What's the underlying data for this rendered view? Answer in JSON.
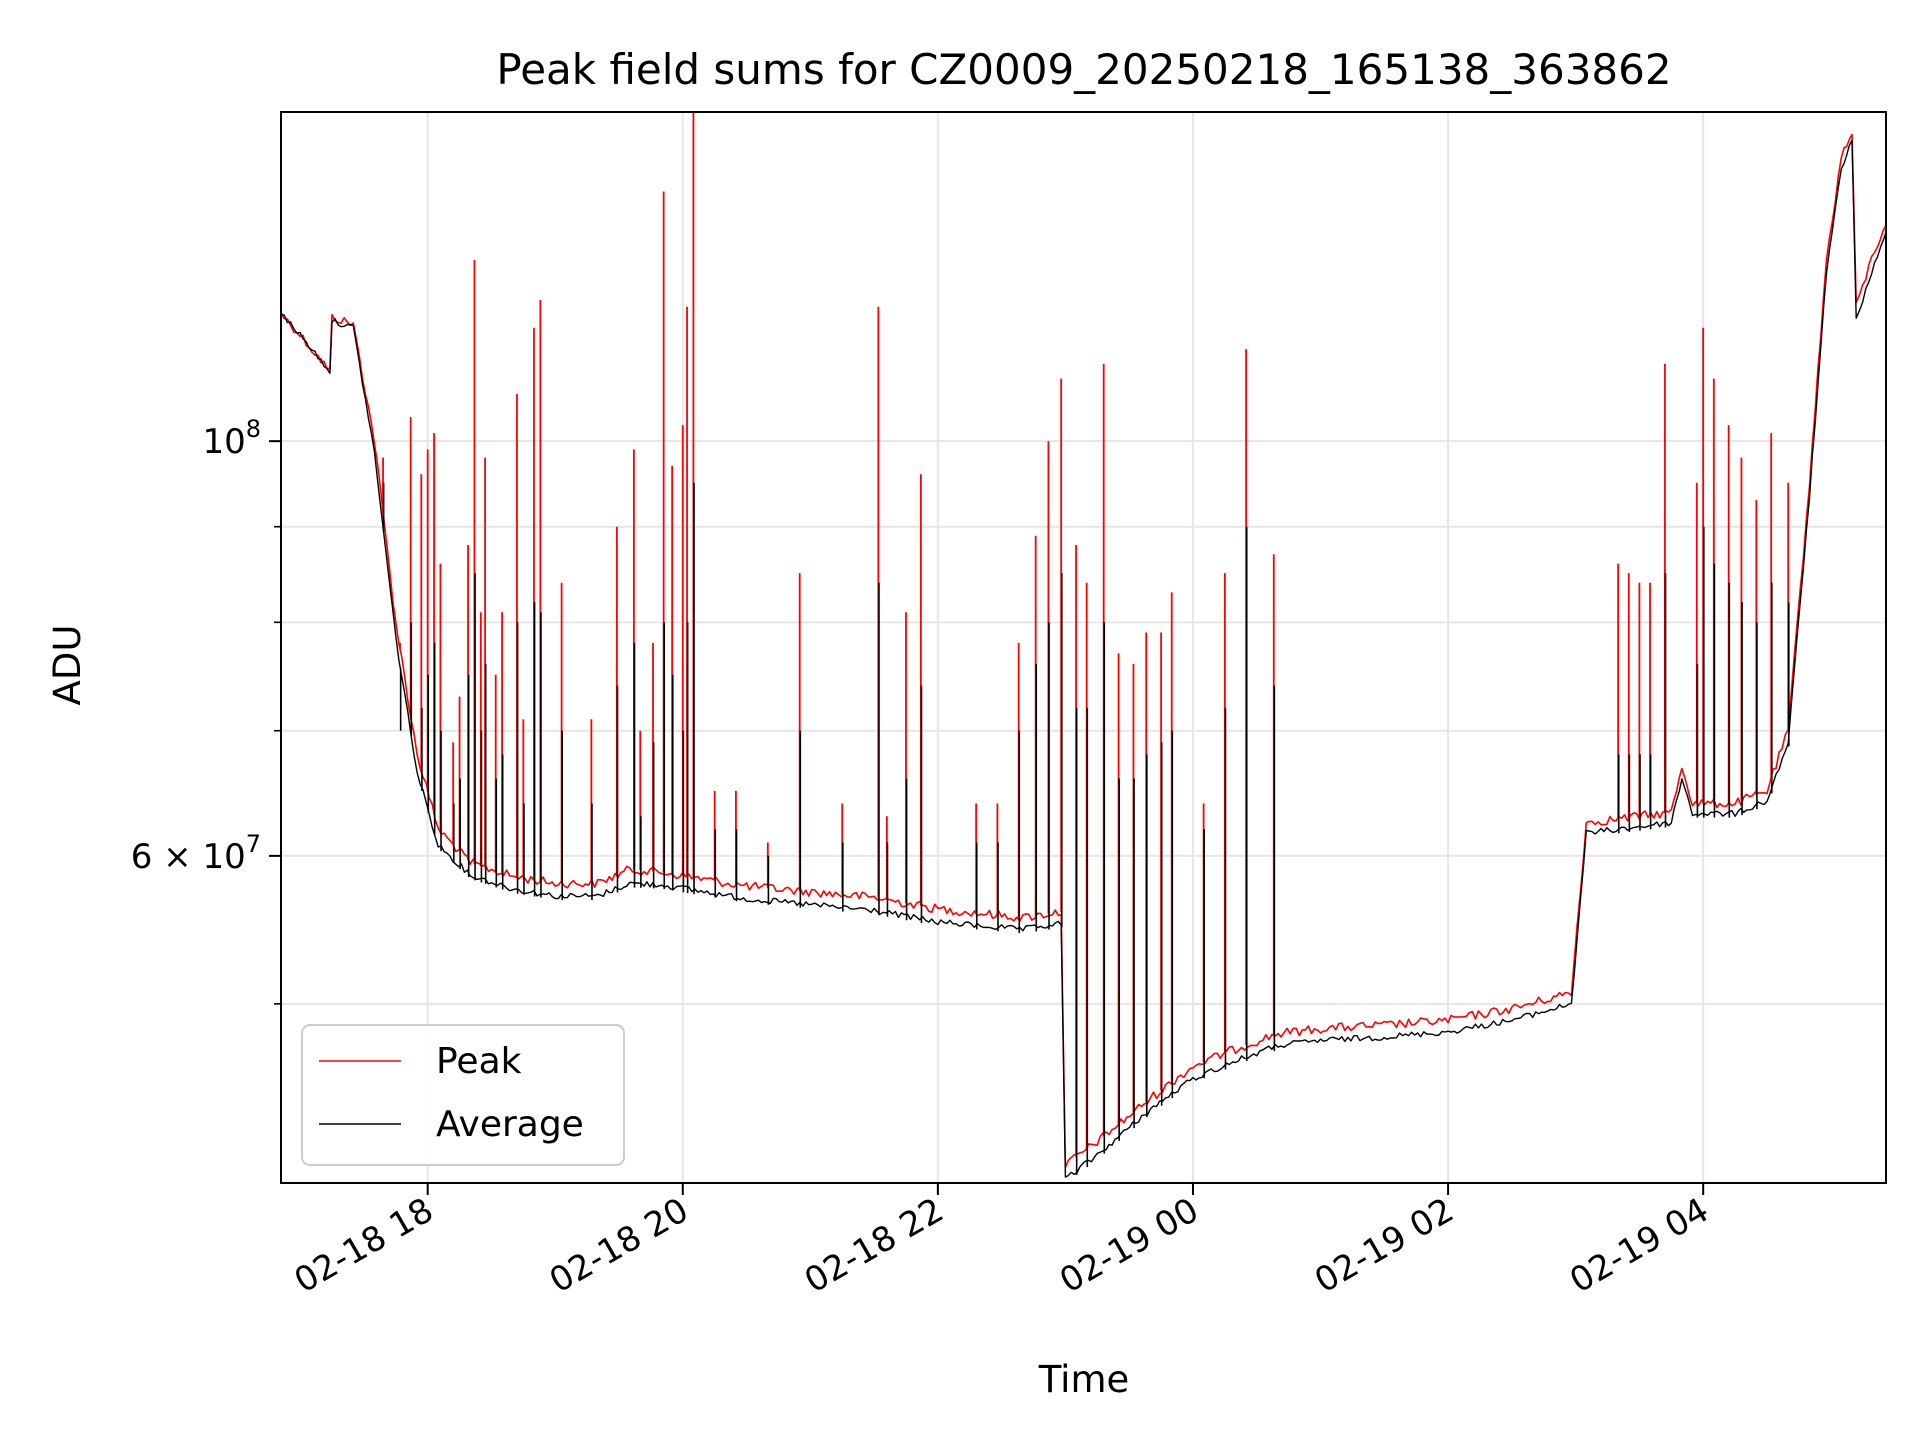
{
  "chart_data": {
    "type": "line",
    "title": "Peak field sums for CZ0009_20250218_165138_363862",
    "xlabel": "Time",
    "ylabel": "ADU",
    "yscale": "log",
    "xlim": [
      "2025-02-18 16:51",
      "2025-02-19 05:26"
    ],
    "ylim": [
      40100000,
      150000000
    ],
    "grid": true,
    "legend_position": "lower-left",
    "x_ticks": [
      {
        "value": "2025-02-18 18:00",
        "label": "02-18 18"
      },
      {
        "value": "2025-02-18 20:00",
        "label": "02-18 20"
      },
      {
        "value": "2025-02-18 22:00",
        "label": "02-18 22"
      },
      {
        "value": "2025-02-19 00:00",
        "label": "02-19 00"
      },
      {
        "value": "2025-02-19 02:00",
        "label": "02-19 02"
      },
      {
        "value": "2025-02-19 04:00",
        "label": "02-19 04"
      }
    ],
    "y_ticks": [
      {
        "value": 100000000,
        "base": "10",
        "exp": "8",
        "mult": ""
      },
      {
        "value": 60000000,
        "base": "10",
        "exp": "7",
        "mult": "6 × "
      }
    ],
    "y_minor_ticks": [
      50000000,
      70000000,
      80000000,
      90000000
    ],
    "series": [
      {
        "name": "Peak",
        "color": "#ff0000",
        "baseline": [
          [
            "2025-02-18 16:51",
            117000000
          ],
          [
            "2025-02-18 17:00",
            114000000
          ],
          [
            "2025-02-18 17:14",
            109000000
          ],
          [
            "2025-02-18 17:15",
            116500000
          ],
          [
            "2025-02-18 17:25",
            115500000
          ],
          [
            "2025-02-18 17:35",
            100000000
          ],
          [
            "2025-02-18 17:45",
            80000000
          ],
          [
            "2025-02-18 17:55",
            68000000
          ],
          [
            "2025-02-18 18:05",
            62000000
          ],
          [
            "2025-02-18 18:20",
            59500000
          ],
          [
            "2025-02-18 18:40",
            58500000
          ],
          [
            "2025-02-18 19:00",
            58000000
          ],
          [
            "2025-02-18 19:20",
            58000000
          ],
          [
            "2025-02-18 19:35",
            59000000
          ],
          [
            "2025-02-18 19:50",
            58800000
          ],
          [
            "2025-02-18 20:30",
            57800000
          ],
          [
            "2025-02-18 21:30",
            57000000
          ],
          [
            "2025-02-18 22:00",
            56200000
          ],
          [
            "2025-02-18 22:40",
            55600000
          ],
          [
            "2025-02-18 22:58",
            56000000
          ],
          [
            "2025-02-18 23:00",
            41000000
          ],
          [
            "2025-02-18 23:15",
            42200000
          ],
          [
            "2025-02-18 23:40",
            44500000
          ],
          [
            "2025-02-19 00:00",
            46300000
          ],
          [
            "2025-02-19 00:20",
            47300000
          ],
          [
            "2025-02-19 00:40",
            48200000
          ],
          [
            "2025-02-19 01:00",
            48500000
          ],
          [
            "2025-02-19 01:30",
            48700000
          ],
          [
            "2025-02-19 02:00",
            49000000
          ],
          [
            "2025-02-19 02:30",
            49700000
          ],
          [
            "2025-02-19 02:58",
            50700000
          ],
          [
            "2025-02-19 03:05",
            62500000
          ],
          [
            "2025-02-19 03:30",
            63000000
          ],
          [
            "2025-02-19 03:45",
            63300000
          ],
          [
            "2025-02-19 03:50",
            67000000
          ],
          [
            "2025-02-19 03:55",
            64000000
          ],
          [
            "2025-02-19 04:15",
            64000000
          ],
          [
            "2025-02-19 04:30",
            65000000
          ],
          [
            "2025-02-19 04:40",
            70000000
          ],
          [
            "2025-02-19 04:50",
            95000000
          ],
          [
            "2025-02-19 04:58",
            125000000
          ],
          [
            "2025-02-19 05:05",
            142000000
          ],
          [
            "2025-02-19 05:10",
            146000000
          ],
          [
            "2025-02-19 05:12",
            118000000
          ],
          [
            "2025-02-19 05:18",
            124000000
          ],
          [
            "2025-02-19 05:26",
            131000000
          ]
        ]
      },
      {
        "name": "Average",
        "color": "#000000",
        "baseline": [
          [
            "2025-02-18 16:51",
            117000000
          ],
          [
            "2025-02-18 17:00",
            114000000
          ],
          [
            "2025-02-18 17:14",
            109000000
          ],
          [
            "2025-02-18 17:15",
            116000000
          ],
          [
            "2025-02-18 17:25",
            115000000
          ],
          [
            "2025-02-18 17:35",
            98500000
          ],
          [
            "2025-02-18 17:45",
            78500000
          ],
          [
            "2025-02-18 17:55",
            66500000
          ],
          [
            "2025-02-18 18:05",
            60800000
          ],
          [
            "2025-02-18 18:20",
            58600000
          ],
          [
            "2025-02-18 18:40",
            57600000
          ],
          [
            "2025-02-18 19:00",
            57100000
          ],
          [
            "2025-02-18 19:20",
            57100000
          ],
          [
            "2025-02-18 19:35",
            58000000
          ],
          [
            "2025-02-18 19:50",
            57900000
          ],
          [
            "2025-02-18 20:30",
            56900000
          ],
          [
            "2025-02-18 21:30",
            56100000
          ],
          [
            "2025-02-18 22:00",
            55300000
          ],
          [
            "2025-02-18 22:40",
            54800000
          ],
          [
            "2025-02-18 22:58",
            55200000
          ],
          [
            "2025-02-18 23:00",
            40300000
          ],
          [
            "2025-02-18 23:15",
            41500000
          ],
          [
            "2025-02-18 23:40",
            43900000
          ],
          [
            "2025-02-19 00:00",
            45600000
          ],
          [
            "2025-02-19 00:20",
            46600000
          ],
          [
            "2025-02-19 00:40",
            47500000
          ],
          [
            "2025-02-19 01:00",
            47800000
          ],
          [
            "2025-02-19 01:30",
            48000000
          ],
          [
            "2025-02-19 02:00",
            48300000
          ],
          [
            "2025-02-19 02:30",
            49000000
          ],
          [
            "2025-02-19 02:58",
            50000000
          ],
          [
            "2025-02-19 03:05",
            61700000
          ],
          [
            "2025-02-19 03:30",
            62200000
          ],
          [
            "2025-02-19 03:45",
            62500000
          ],
          [
            "2025-02-19 03:50",
            66000000
          ],
          [
            "2025-02-19 03:55",
            63200000
          ],
          [
            "2025-02-19 04:15",
            63200000
          ],
          [
            "2025-02-19 04:30",
            64200000
          ],
          [
            "2025-02-19 04:40",
            69000000
          ],
          [
            "2025-02-19 04:50",
            93500000
          ],
          [
            "2025-02-19 04:58",
            123000000
          ],
          [
            "2025-02-19 05:05",
            140000000
          ],
          [
            "2025-02-19 05:10",
            145000000
          ],
          [
            "2025-02-19 05:12",
            116000000
          ],
          [
            "2025-02-19 05:18",
            122000000
          ],
          [
            "2025-02-19 05:26",
            129000000
          ]
        ]
      }
    ],
    "peak_spikes": [
      [
        "2025-02-18 17:39",
        98000000,
        95000000
      ],
      [
        "2025-02-18 17:47",
        78000000,
        70000000
      ],
      [
        "2025-02-18 17:52",
        103000000,
        80000000
      ],
      [
        "2025-02-18 17:57",
        96000000,
        72000000
      ],
      [
        "2025-02-18 18:00",
        99000000,
        75000000
      ],
      [
        "2025-02-18 18:03",
        101000000,
        78000000
      ],
      [
        "2025-02-18 18:06",
        86000000,
        70000000
      ],
      [
        "2025-02-18 18:12",
        69000000,
        64000000
      ],
      [
        "2025-02-18 18:15",
        73000000,
        66000000
      ],
      [
        "2025-02-18 18:19",
        88000000,
        75000000
      ],
      [
        "2025-02-18 18:22",
        125000000,
        85000000
      ],
      [
        "2025-02-18 18:25",
        81000000,
        70000000
      ],
      [
        "2025-02-18 18:27",
        98000000,
        76000000
      ],
      [
        "2025-02-18 18:32",
        75000000,
        66000000
      ],
      [
        "2025-02-18 18:35",
        81000000,
        68000000
      ],
      [
        "2025-02-18 18:42",
        106000000,
        80000000
      ],
      [
        "2025-02-18 18:45",
        71000000,
        64000000
      ],
      [
        "2025-02-18 18:50",
        115000000,
        82000000
      ],
      [
        "2025-02-18 18:53",
        119000000,
        81000000
      ],
      [
        "2025-02-18 19:03",
        84000000,
        70000000
      ],
      [
        "2025-02-18 19:17",
        71000000,
        64000000
      ],
      [
        "2025-02-18 19:29",
        90000000,
        74000000
      ],
      [
        "2025-02-18 19:37",
        99000000,
        78000000
      ],
      [
        "2025-02-18 19:40",
        70000000,
        63000000
      ],
      [
        "2025-02-18 19:46",
        78000000,
        69000000
      ],
      [
        "2025-02-18 19:51",
        136000000,
        80000000
      ],
      [
        "2025-02-18 19:55",
        97000000,
        75000000
      ],
      [
        "2025-02-18 20:00",
        102000000,
        70000000
      ],
      [
        "2025-02-18 20:02",
        118000000,
        80000000
      ],
      [
        "2025-02-18 20:05",
        150000000,
        95000000
      ],
      [
        "2025-02-18 20:15",
        65000000,
        62000000
      ],
      [
        "2025-02-18 20:25",
        65000000,
        62000000
      ],
      [
        "2025-02-18 20:40",
        61000000,
        60000000
      ],
      [
        "2025-02-18 20:55",
        85000000,
        70000000
      ],
      [
        "2025-02-18 21:15",
        64000000,
        61000000
      ],
      [
        "2025-02-18 21:32",
        118000000,
        84000000
      ],
      [
        "2025-02-18 21:36",
        63000000,
        61000000
      ],
      [
        "2025-02-18 21:45",
        81000000,
        66000000
      ],
      [
        "2025-02-18 21:52",
        96000000,
        74000000
      ],
      [
        "2025-02-18 22:18",
        64000000,
        61000000
      ],
      [
        "2025-02-18 22:28",
        64000000,
        61000000
      ],
      [
        "2025-02-18 22:38",
        78000000,
        70000000
      ],
      [
        "2025-02-18 22:46",
        89000000,
        76000000
      ],
      [
        "2025-02-18 22:52",
        100000000,
        80000000
      ],
      [
        "2025-02-18 22:58",
        108000000,
        85000000
      ],
      [
        "2025-02-18 23:05",
        88000000,
        72000000
      ],
      [
        "2025-02-18 23:10",
        84000000,
        72000000
      ],
      [
        "2025-02-18 23:18",
        110000000,
        80000000
      ],
      [
        "2025-02-18 23:25",
        77000000,
        66000000
      ],
      [
        "2025-02-18 23:32",
        76000000,
        66000000
      ],
      [
        "2025-02-18 23:38",
        79000000,
        68000000
      ],
      [
        "2025-02-18 23:45",
        79000000,
        69000000
      ],
      [
        "2025-02-18 23:50",
        83000000,
        70000000
      ],
      [
        "2025-02-18 24:05",
        64000000,
        62000000
      ],
      [
        "2025-02-19 00:15",
        85000000,
        72000000
      ],
      [
        "2025-02-19 00:25",
        112000000,
        90000000
      ],
      [
        "2025-02-19 00:38",
        87000000,
        74000000
      ],
      [
        "2025-02-19 03:20",
        86000000,
        68000000
      ],
      [
        "2025-02-19 03:25",
        85000000,
        68000000
      ],
      [
        "2025-02-19 03:30",
        84000000,
        68000000
      ],
      [
        "2025-02-19 03:35",
        84000000,
        68000000
      ],
      [
        "2025-02-19 03:42",
        110000000,
        85000000
      ],
      [
        "2025-02-19 03:57",
        95000000,
        76000000
      ],
      [
        "2025-02-19 04:00",
        115000000,
        90000000
      ],
      [
        "2025-02-19 04:05",
        108000000,
        86000000
      ],
      [
        "2025-02-19 04:12",
        102000000,
        84000000
      ],
      [
        "2025-02-19 04:18",
        98000000,
        82000000
      ],
      [
        "2025-02-19 04:25",
        93000000,
        80000000
      ],
      [
        "2025-02-19 04:32",
        101000000,
        84000000
      ],
      [
        "2025-02-19 04:40",
        95000000,
        82000000
      ]
    ]
  }
}
